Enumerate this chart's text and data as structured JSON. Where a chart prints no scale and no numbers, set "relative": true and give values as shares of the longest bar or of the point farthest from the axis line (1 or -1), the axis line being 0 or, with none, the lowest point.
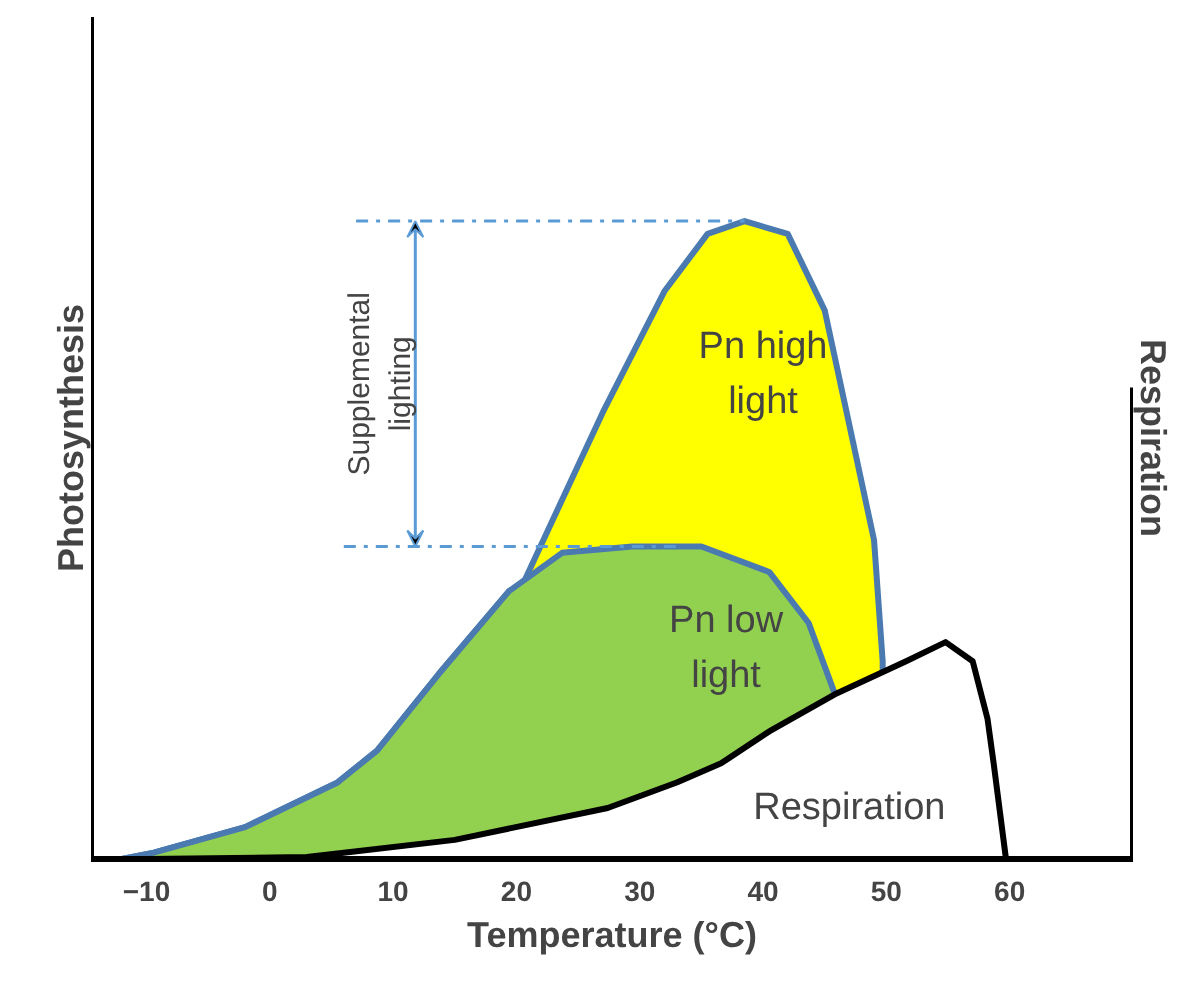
{
  "chart_data": {
    "type": "area",
    "relative": true,
    "xlabel": "Temperature (°C)",
    "ylabel": "Photosynthesis",
    "y2label": "Respiration",
    "xlim": [
      -14.5,
      70
    ],
    "xticks": [
      -10,
      0,
      10,
      20,
      30,
      40,
      50,
      60
    ],
    "grid": false,
    "series": [
      {
        "color": "#ffff00",
        "x": [
          -12,
          -9.4,
          -2,
          5.5,
          8.7,
          13.7,
          19.4,
          20.5,
          27,
          32,
          35.5,
          38.5,
          42,
          45,
          47,
          49,
          49.7
        ],
        "values": [
          0,
          0.01,
          0.05,
          0.12,
          0.17,
          0.29,
          0.42,
          0.43,
          0.7,
          0.89,
          0.98,
          1.0,
          0.98,
          0.86,
          0.68,
          0.5,
          0.31
        ]
      },
      {
        "color": "#92d050",
        "x": [
          -12,
          -9.4,
          -2,
          5.5,
          8.7,
          13.7,
          19.4,
          23.7,
          29.4,
          35,
          40.5,
          43.7,
          45.8
        ],
        "values": [
          0,
          0.01,
          0.05,
          0.12,
          0.17,
          0.29,
          0.42,
          0.48,
          0.49,
          0.49,
          0.45,
          0.37,
          0.26
        ]
      },
      {
        "color": "#ffffff",
        "x": [
          -10,
          3,
          15,
          27.4,
          33,
          36.6,
          40.5,
          46,
          51.6,
          54.8,
          57,
          58.2,
          58.7,
          59.7
        ],
        "values": [
          0,
          0.003,
          0.03,
          0.08,
          0.12,
          0.15,
          0.2,
          0.26,
          0.31,
          0.34,
          0.31,
          0.22,
          0.15,
          0
        ]
      },
      {
        "type": "line",
        "color": "#5b9bd5",
        "line_style": "dashdot",
        "x": [
          7,
          38.5
        ],
        "values": [
          1.0,
          1.0
        ]
      },
      {
        "type": "line",
        "color": "#5b9bd5",
        "line_style": "dashdot",
        "x": [
          6,
          33
        ],
        "values": [
          0.49,
          0.49
        ]
      }
    ],
    "annotations": [
      "Supplemental lighting",
      "Pn high light",
      "Pn low light",
      "Respiration"
    ]
  }
}
